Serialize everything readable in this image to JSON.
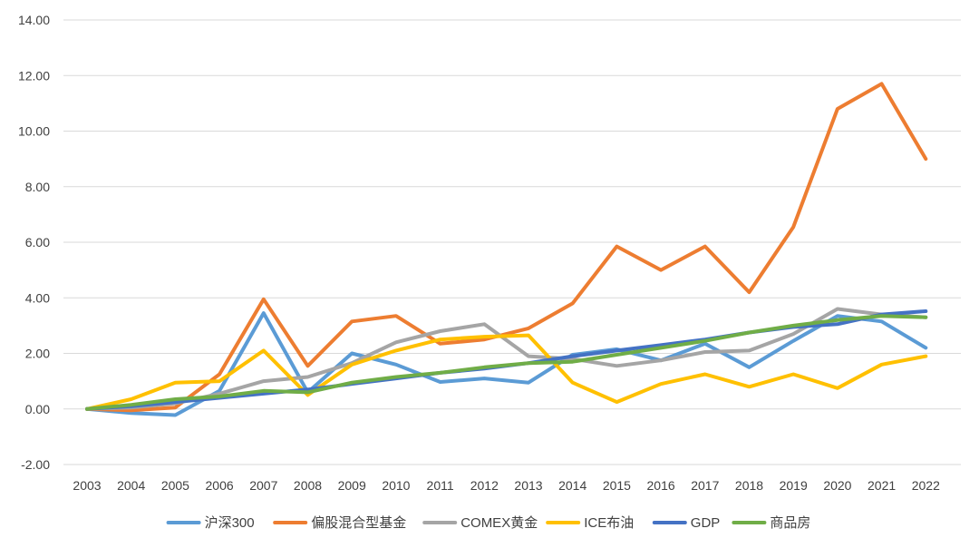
{
  "chart_data": {
    "type": "line",
    "title": "",
    "xlabel": "",
    "ylabel": "",
    "ylim": [
      -2,
      14
    ],
    "y_ticks": [
      "-2.00",
      "0.00",
      "2.00",
      "4.00",
      "6.00",
      "8.00",
      "10.00",
      "12.00",
      "14.00"
    ],
    "grid": true,
    "legend_position": "bottom",
    "categories": [
      "2003",
      "2004",
      "2005",
      "2006",
      "2007",
      "2008",
      "2009",
      "2010",
      "2011",
      "2012",
      "2013",
      "2014",
      "2015",
      "2016",
      "2017",
      "2018",
      "2019",
      "2020",
      "2021",
      "2022"
    ],
    "series": [
      {
        "name": "沪深300",
        "color": "#5b9bd5",
        "values": [
          0.0,
          -0.15,
          -0.22,
          0.65,
          3.45,
          0.6,
          2.0,
          1.6,
          0.97,
          1.1,
          0.95,
          1.95,
          2.15,
          1.75,
          2.35,
          1.5,
          2.45,
          3.35,
          3.15,
          2.2
        ]
      },
      {
        "name": "偏股混合型基金",
        "color": "#ed7d31",
        "values": [
          0.0,
          -0.05,
          0.05,
          1.25,
          3.95,
          1.55,
          3.15,
          3.35,
          2.35,
          2.5,
          2.9,
          3.8,
          5.85,
          5.0,
          5.85,
          4.2,
          6.55,
          10.8,
          11.7,
          9.0
        ]
      },
      {
        "name": "COMEX黄金",
        "color": "#a5a5a5",
        "values": [
          0.0,
          0.05,
          0.2,
          0.55,
          1.0,
          1.15,
          1.65,
          2.4,
          2.8,
          3.05,
          1.9,
          1.8,
          1.55,
          1.75,
          2.05,
          2.1,
          2.7,
          3.6,
          3.4,
          3.3
        ]
      },
      {
        "name": "ICE布油",
        "color": "#ffc000",
        "values": [
          0.0,
          0.35,
          0.95,
          1.0,
          2.1,
          0.5,
          1.6,
          2.1,
          2.5,
          2.6,
          2.65,
          0.95,
          0.25,
          0.9,
          1.25,
          0.8,
          1.25,
          0.75,
          1.6,
          1.9
        ]
      },
      {
        "name": "GDP",
        "color": "#4472c4",
        "values": [
          0.0,
          0.1,
          0.25,
          0.4,
          0.55,
          0.7,
          0.9,
          1.1,
          1.3,
          1.45,
          1.65,
          1.9,
          2.1,
          2.3,
          2.5,
          2.75,
          2.95,
          3.05,
          3.4,
          3.52
        ]
      },
      {
        "name": "商品房",
        "color": "#70ad47",
        "values": [
          0.0,
          0.15,
          0.35,
          0.45,
          0.65,
          0.6,
          0.95,
          1.15,
          1.3,
          1.5,
          1.65,
          1.7,
          1.95,
          2.2,
          2.45,
          2.75,
          3.0,
          3.2,
          3.35,
          3.3
        ]
      }
    ]
  }
}
